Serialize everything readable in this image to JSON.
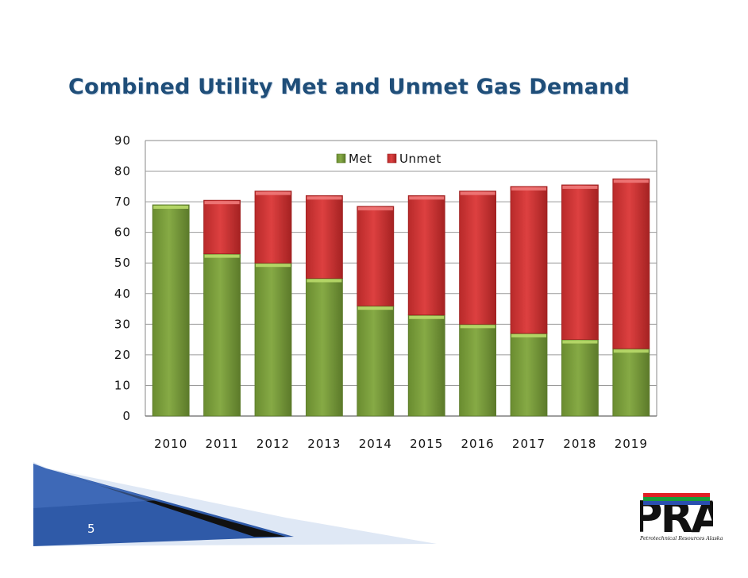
{
  "slide": {
    "title": "Combined Utility Met and Unmet Gas Demand",
    "page_number": "5"
  },
  "logo": {
    "name": "PRA",
    "caption": "Petrotechnical Resources Alaska",
    "stripe_colors": [
      "#e01f26",
      "#1a9c3a",
      "#2a4fb0"
    ]
  },
  "colors": {
    "met": "#7fa23f",
    "met_top": "#b9da6a",
    "unmet": "#d93a3a",
    "unmet_top": "#f07a7a",
    "title": "#1f4e79",
    "banner_blue": "#2f5aa8"
  },
  "chart_data": {
    "type": "bar",
    "stacked": true,
    "title": "",
    "xlabel": "",
    "ylabel": "",
    "categories": [
      "2010",
      "2011",
      "2012",
      "2013",
      "2014",
      "2015",
      "2016",
      "2017",
      "2018",
      "2019"
    ],
    "series": [
      {
        "name": "Met",
        "values": [
          69,
          53,
          50,
          45,
          36,
          33,
          30,
          27,
          25,
          22
        ]
      },
      {
        "name": "Unmet",
        "values": [
          0,
          17.5,
          23.5,
          27,
          32.5,
          39,
          43.5,
          48,
          50.5,
          55.5
        ]
      }
    ],
    "ylim": [
      0,
      90
    ],
    "yticks": [
      "0",
      "10",
      "20",
      "30",
      "40",
      "50",
      "60",
      "70",
      "80",
      "90"
    ],
    "grid": true,
    "legend": "top-center"
  }
}
